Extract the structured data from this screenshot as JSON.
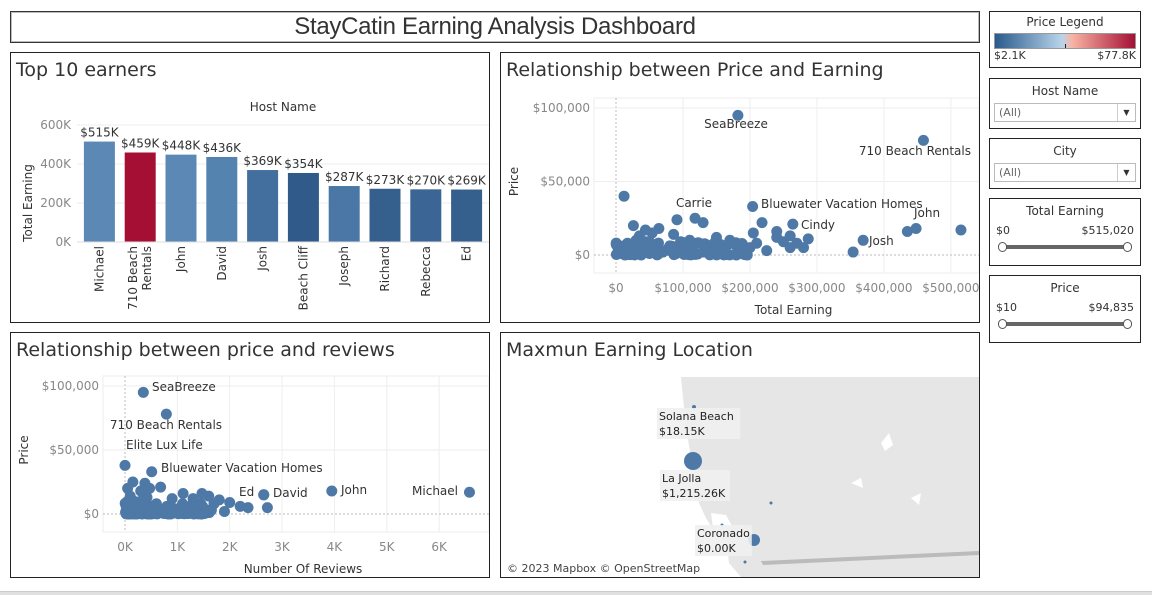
{
  "dashboard": {
    "title": "StayCatin Earning Analysis Dashboard"
  },
  "legend": {
    "title": "Price Legend",
    "min_label": "$2.1K",
    "max_label": "$77.8K",
    "colors": [
      "#2a5a8c",
      "#b8d4ea",
      "#f8b4a4",
      "#a50f34"
    ]
  },
  "filters": {
    "host_name": {
      "title": "Host Name",
      "value": "(All)"
    },
    "city": {
      "title": "City",
      "value": "(All)"
    },
    "total_earning": {
      "title": "Total Earning",
      "min": "$0",
      "max": "$515,020"
    },
    "price": {
      "title": "Price",
      "min": "$10",
      "max": "$94,835"
    }
  },
  "panels": {
    "top10": {
      "title": "Top 10 earners"
    },
    "price_earning": {
      "title": "Relationship between Price and Earning"
    },
    "price_reviews": {
      "title": "Relationship between price and reviews"
    },
    "map": {
      "title": "Maxmun Earning Location",
      "attribution": "© 2023 Mapbox © OpenStreetMap"
    }
  },
  "chart_data": [
    {
      "type": "bar",
      "title": "Top 10 earners",
      "xlabel": "Host Name",
      "ylabel": "Total Earning",
      "ylim": [
        0,
        600000
      ],
      "yticks": [
        "0K",
        "200K",
        "400K",
        "600K"
      ],
      "categories": [
        "Michael",
        "710 Beach Rentals",
        "John",
        "David",
        "Josh",
        "Beach Cliff",
        "Joseph",
        "Richard",
        "Rebecca",
        "Ed"
      ],
      "values": [
        515000,
        459000,
        448000,
        436000,
        369000,
        354000,
        287000,
        273000,
        270000,
        269000
      ],
      "data_labels": [
        "$515K",
        "$459K",
        "$448K",
        "$436K",
        "$369K",
        "$354K",
        "$287K",
        "$273K",
        "$270K",
        "$269K"
      ],
      "colors": [
        "#5b88b5",
        "#a50f34",
        "#5b88b5",
        "#5583b0",
        "#426f9e",
        "#2f5a89",
        "#4a77a5",
        "#35608e",
        "#3a6594",
        "#35608e"
      ]
    },
    {
      "type": "scatter",
      "title": "Relationship between Price and Earning",
      "xlabel": "Total Earning",
      "ylabel": "Price",
      "xticks": [
        "$0",
        "$100,000",
        "$200,000",
        "$300,000",
        "$400,000",
        "$500,000"
      ],
      "yticks": [
        "$0",
        "$50,000",
        "$100,000"
      ],
      "labeled_points": [
        {
          "label": "SeaBreeze",
          "x": 182000,
          "y": 95000
        },
        {
          "label": "710 Beach Rentals",
          "x": 459000,
          "y": 78000
        },
        {
          "label": "Carrie",
          "x": 118000,
          "y": 25000
        },
        {
          "label": "Bluewater Vacation Homes",
          "x": 204000,
          "y": 33000
        },
        {
          "label": "Cindy",
          "x": 264000,
          "y": 21000
        },
        {
          "label": "John",
          "x": 448000,
          "y": 18000
        },
        {
          "label": "Josh",
          "x": 369000,
          "y": 10000
        }
      ],
      "points": [
        [
          12000,
          40000
        ],
        [
          91000,
          24000
        ],
        [
          130000,
          22000
        ],
        [
          218000,
          22000
        ],
        [
          26000,
          20000
        ],
        [
          64000,
          18000
        ],
        [
          44000,
          17000
        ],
        [
          54000,
          15000
        ],
        [
          86000,
          14000
        ],
        [
          240000,
          16000
        ],
        [
          205000,
          15000
        ],
        [
          260000,
          13000
        ],
        [
          287000,
          11000
        ],
        [
          435000,
          16000
        ],
        [
          515000,
          17000
        ],
        [
          354000,
          2000
        ],
        [
          150000,
          12000
        ],
        [
          170000,
          10000
        ],
        [
          250000,
          9000
        ],
        [
          270000,
          8000
        ],
        [
          110000,
          10000
        ],
        [
          30000,
          10000
        ],
        [
          120000,
          8000
        ],
        [
          60000,
          7000
        ],
        [
          190000,
          6000
        ],
        [
          225000,
          3000
        ],
        [
          280000,
          5000
        ],
        [
          100000,
          5000
        ],
        [
          160000,
          4000
        ],
        [
          80000,
          4000
        ],
        [
          40000,
          5000
        ],
        [
          20000,
          4000
        ],
        [
          5000,
          6000
        ],
        [
          140000,
          3000
        ],
        [
          200000,
          5000
        ],
        [
          10000,
          3000
        ],
        [
          70000,
          2000
        ],
        [
          130000,
          2000
        ],
        [
          180000,
          6000
        ],
        [
          260000,
          5000
        ],
        [
          30000,
          2000
        ],
        [
          50000,
          1000
        ],
        [
          90000,
          1000
        ],
        [
          8000,
          1000
        ],
        [
          3000,
          2000
        ],
        [
          15000,
          7000
        ],
        [
          35000,
          13000
        ],
        [
          45000,
          9000
        ],
        [
          210000,
          8000
        ],
        [
          240000,
          12000
        ]
      ]
    },
    {
      "type": "scatter",
      "title": "Relationship between price and reviews",
      "xlabel": "Number Of Reviews",
      "ylabel": "Price",
      "xticks": [
        "0K",
        "1K",
        "2K",
        "3K",
        "4K",
        "5K",
        "6K"
      ],
      "yticks": [
        "$0",
        "$50,000",
        "$100,000"
      ],
      "labeled_points": [
        {
          "label": "SeaBreeze",
          "x": 350,
          "y": 95000
        },
        {
          "label": "710 Beach Rentals",
          "x": 790,
          "y": 78000
        },
        {
          "label": "Elite Lux Life",
          "x": 0,
          "y": 38000
        },
        {
          "label": "Bluewater Vacation Homes",
          "x": 510,
          "y": 33000
        },
        {
          "label": "Ed",
          "x": 2650,
          "y": 15000
        },
        {
          "label": "David",
          "x": 2650,
          "y": 15000
        },
        {
          "label": "John",
          "x": 3950,
          "y": 18000
        },
        {
          "label": "Michael",
          "x": 6580,
          "y": 17000
        }
      ],
      "points": [
        [
          150,
          25000
        ],
        [
          380,
          24000
        ],
        [
          470,
          20000
        ],
        [
          680,
          21000
        ],
        [
          50,
          20000
        ],
        [
          300,
          18000
        ],
        [
          1110,
          16000
        ],
        [
          1470,
          16000
        ],
        [
          1600,
          14000
        ],
        [
          1800,
          11000
        ],
        [
          2000,
          9000
        ],
        [
          2200,
          6000
        ],
        [
          2350,
          5000
        ],
        [
          2720,
          5000
        ],
        [
          100,
          14000
        ],
        [
          420,
          13000
        ],
        [
          900,
          12000
        ],
        [
          1300,
          12000
        ],
        [
          1700,
          8000
        ],
        [
          1900,
          2000
        ],
        [
          1650,
          3000
        ],
        [
          1200,
          4000
        ],
        [
          800,
          6000
        ],
        [
          600,
          8000
        ],
        [
          400,
          6000
        ],
        [
          200,
          4000
        ],
        [
          100,
          2000
        ],
        [
          1000,
          3000
        ],
        [
          1400,
          7000
        ],
        [
          700,
          2000
        ],
        [
          500,
          3000
        ],
        [
          300,
          10000
        ],
        [
          900,
          5000
        ],
        [
          1100,
          8000
        ],
        [
          1500,
          4000
        ],
        [
          50,
          8000
        ],
        [
          150,
          6000
        ],
        [
          250,
          1000
        ],
        [
          60,
          1000
        ],
        [
          1300,
          1000
        ]
      ]
    },
    {
      "type": "map",
      "title": "Maxmun Earning Location",
      "locations": [
        {
          "city": "Solana Beach",
          "value": "$18.15K"
        },
        {
          "city": "La Jolla",
          "value": "$1,215.26K"
        },
        {
          "city": "Coronado",
          "value": "$0.00K"
        }
      ]
    }
  ]
}
